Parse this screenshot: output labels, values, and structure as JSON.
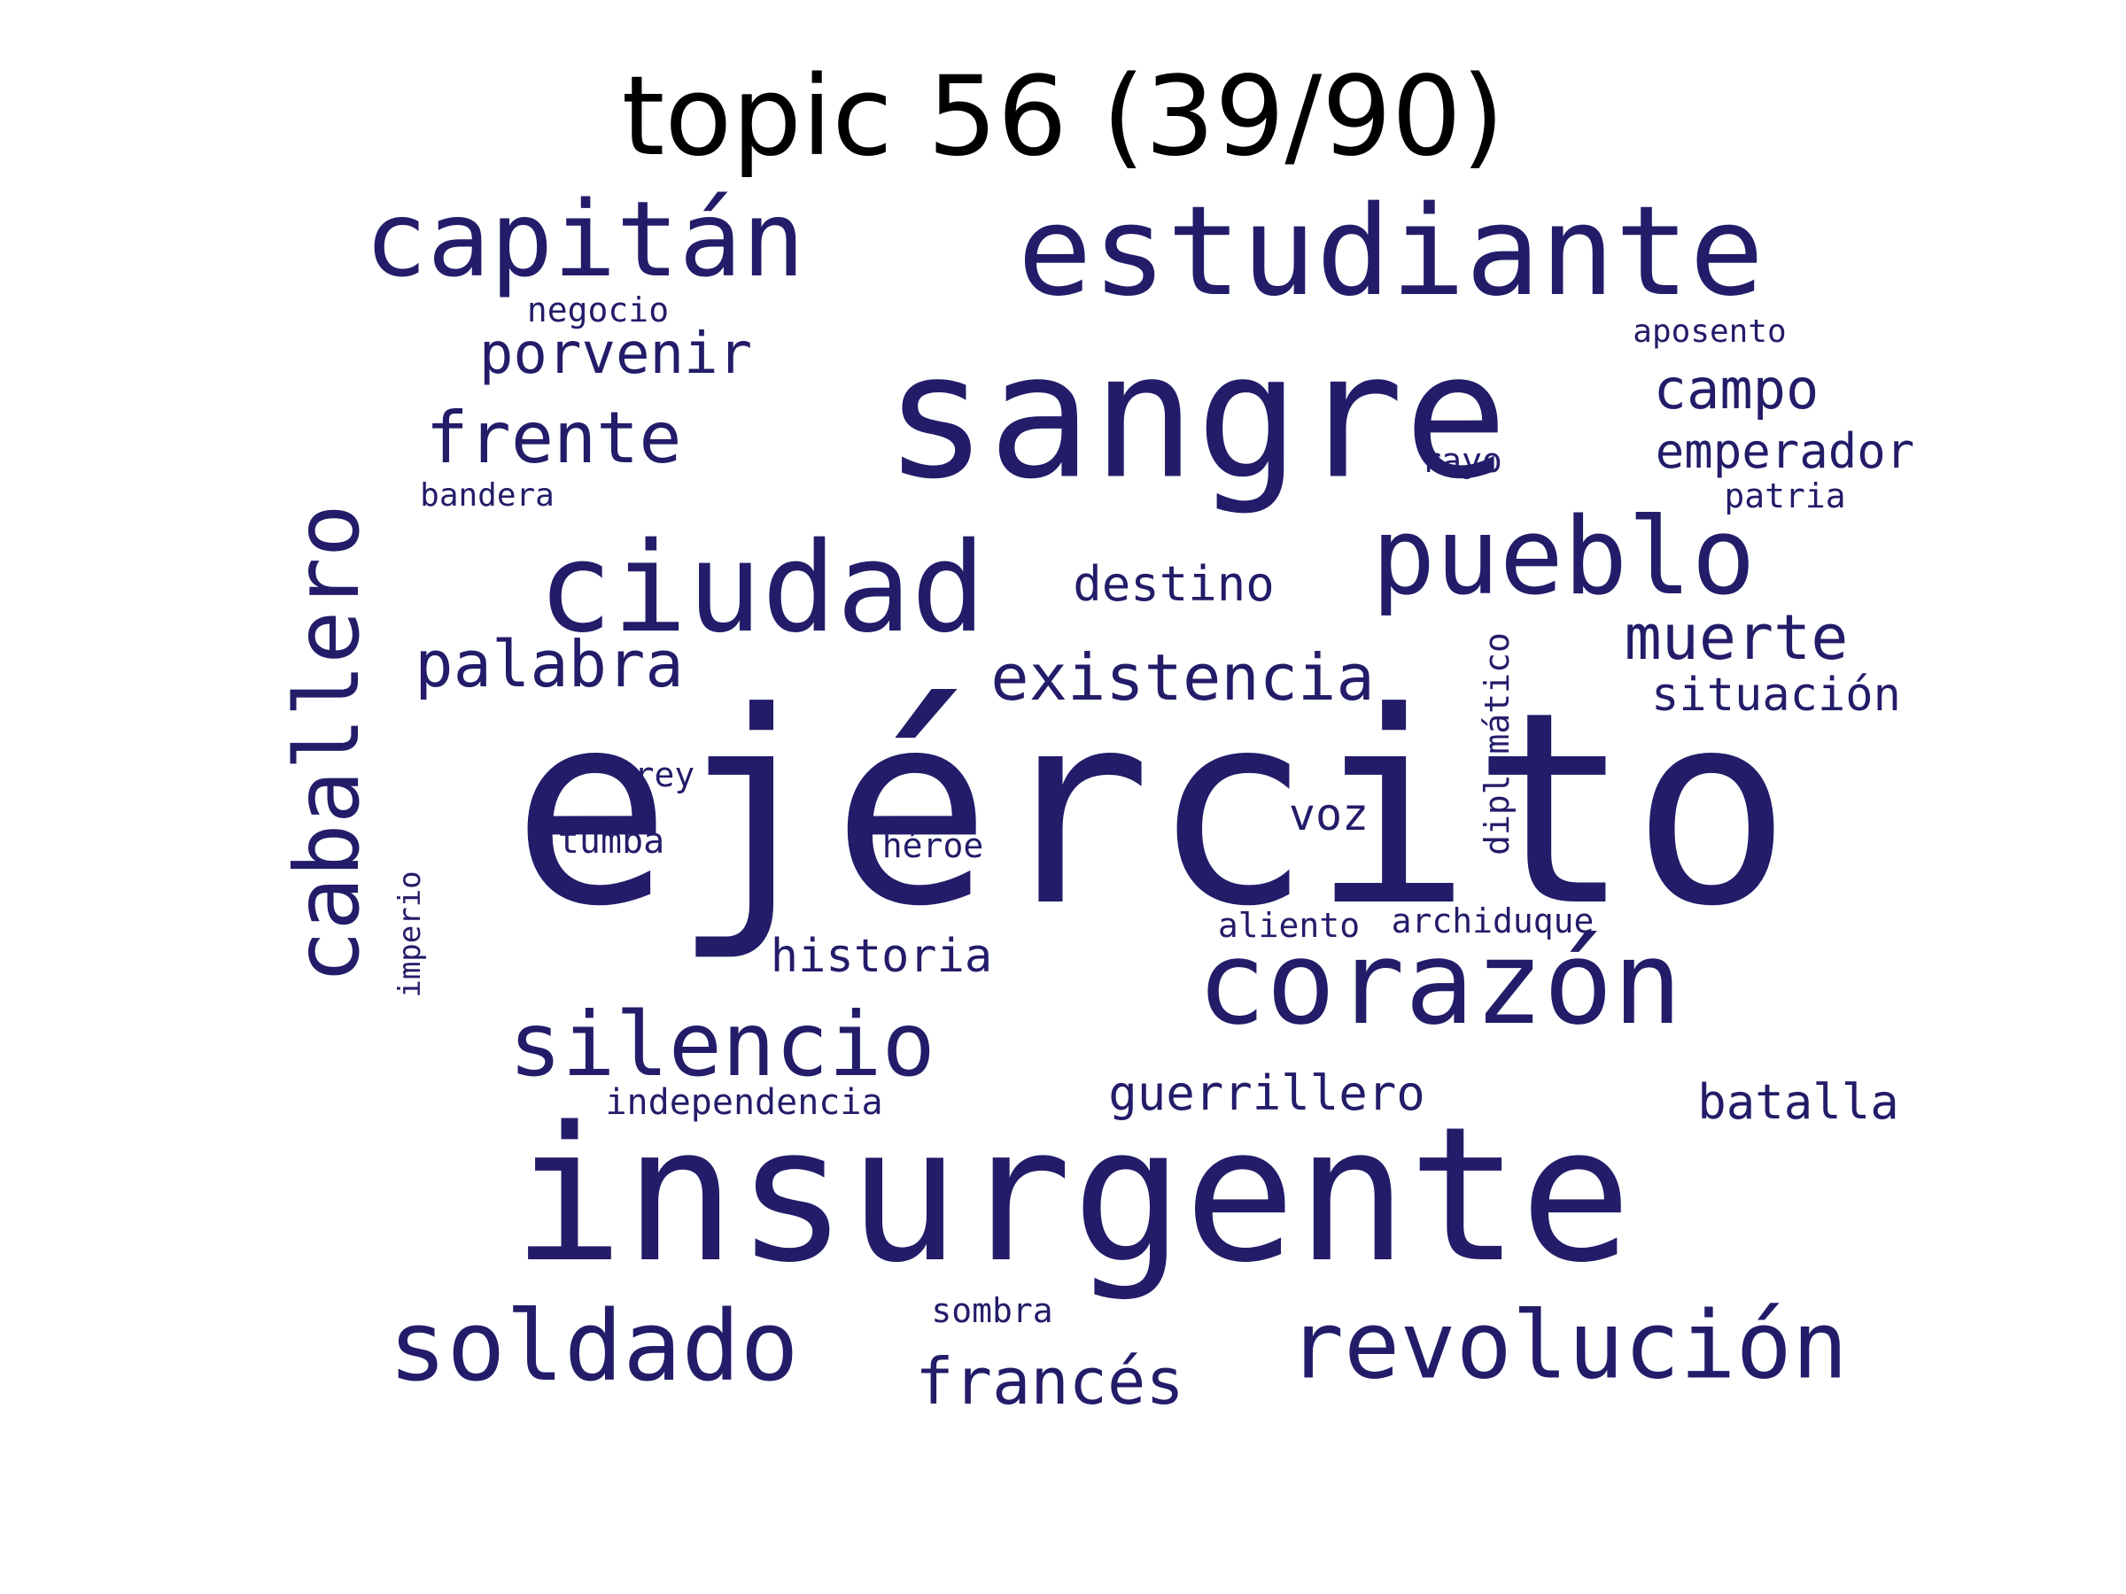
{
  "title": "topic 56 (39/90)",
  "colors": {
    "word": "#231c69",
    "title": "#000000",
    "background": "#ffffff"
  },
  "words": [
    {
      "text": "ejército"
    },
    {
      "text": "insurgente"
    },
    {
      "text": "sangre"
    },
    {
      "text": "estudiante"
    },
    {
      "text": "corazón"
    },
    {
      "text": "ciudad"
    },
    {
      "text": "capitán"
    },
    {
      "text": "caballero"
    },
    {
      "text": "pueblo"
    },
    {
      "text": "revolución"
    },
    {
      "text": "soldado"
    },
    {
      "text": "silencio"
    },
    {
      "text": "existencia"
    },
    {
      "text": "frente"
    },
    {
      "text": "palabra"
    },
    {
      "text": "muerte"
    },
    {
      "text": "francés"
    },
    {
      "text": "porvenir"
    },
    {
      "text": "campo"
    },
    {
      "text": "emperador"
    },
    {
      "text": "destino"
    },
    {
      "text": "situación"
    },
    {
      "text": "guerrillero"
    },
    {
      "text": "batalla"
    },
    {
      "text": "historia"
    },
    {
      "text": "voz"
    },
    {
      "text": "diplomático"
    },
    {
      "text": "independencia"
    },
    {
      "text": "negocio"
    },
    {
      "text": "aposento"
    },
    {
      "text": "bandera"
    },
    {
      "text": "rayo"
    },
    {
      "text": "patria"
    },
    {
      "text": "rey"
    },
    {
      "text": "tumba"
    },
    {
      "text": "héroe"
    },
    {
      "text": "imperio"
    },
    {
      "text": "aliento"
    },
    {
      "text": "archiduque"
    },
    {
      "text": "sombra"
    }
  ]
}
